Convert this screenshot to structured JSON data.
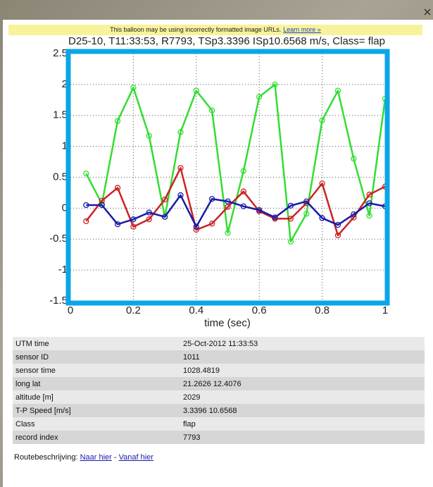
{
  "banner": {
    "text": "This balloon may be using incorrectly formatted image URLs.",
    "link": "Learn more »"
  },
  "chart_data": {
    "type": "line",
    "title": "D25-10, T11:33:53, R7793, TSp3.3396 ISp10.6568 m/s, Class= flap",
    "xlabel": "time (sec)",
    "x": [
      0.05,
      0.1,
      0.15,
      0.2,
      0.25,
      0.3,
      0.35,
      0.4,
      0.45,
      0.5,
      0.55,
      0.6,
      0.65,
      0.7,
      0.75,
      0.8,
      0.85,
      0.9,
      0.95,
      1.0
    ],
    "series": [
      {
        "color": "#33dd33",
        "values": [
          0.56,
          0.07,
          1.41,
          1.95,
          1.17,
          -0.14,
          1.23,
          1.9,
          1.58,
          -0.4,
          0.6,
          1.8,
          2.0,
          -0.54,
          -0.09,
          1.42,
          1.9,
          0.8,
          -0.12,
          1.77
        ]
      },
      {
        "color": "#cc2222",
        "values": [
          -0.21,
          0.12,
          0.33,
          -0.3,
          -0.18,
          0.14,
          0.65,
          -0.35,
          -0.25,
          0.02,
          0.27,
          -0.05,
          -0.17,
          -0.17,
          0.08,
          0.4,
          -0.44,
          -0.15,
          0.22,
          0.35
        ]
      },
      {
        "color": "#1a1aa8",
        "values": [
          0.05,
          0.05,
          -0.26,
          -0.18,
          -0.07,
          -0.14,
          0.21,
          -0.3,
          0.15,
          0.11,
          0.03,
          -0.03,
          -0.15,
          0.04,
          0.11,
          -0.16,
          -0.27,
          -0.1,
          0.08,
          0.03
        ]
      }
    ],
    "xlim": [
      0,
      1
    ],
    "xticks": [
      0,
      0.2,
      0.4,
      0.6,
      0.8,
      1
    ],
    "ylim": [
      -1.5,
      2.5
    ],
    "yticks": [
      2.5,
      2,
      1.5,
      1,
      0.5,
      0,
      -0.5,
      -1,
      -1.5
    ],
    "grid": true,
    "frame_color": "#0aa6e8"
  },
  "table": {
    "rows": [
      [
        "UTM time",
        "25-Oct-2012 11:33:53"
      ],
      [
        "sensor ID",
        "1011"
      ],
      [
        "sensor time",
        "1028.4819"
      ],
      [
        "long lat",
        "21.2626 12.4076"
      ],
      [
        "altitude [m]",
        "2029"
      ],
      [
        "T-P Speed [m/s]",
        "3.3396 10.6568"
      ],
      [
        "Class",
        "flap"
      ],
      [
        "record index",
        "7793"
      ]
    ]
  },
  "route": {
    "label": "Routebeschrijving:",
    "links": [
      "Naar hier",
      "Vanaf hier"
    ],
    "separator": "-"
  }
}
